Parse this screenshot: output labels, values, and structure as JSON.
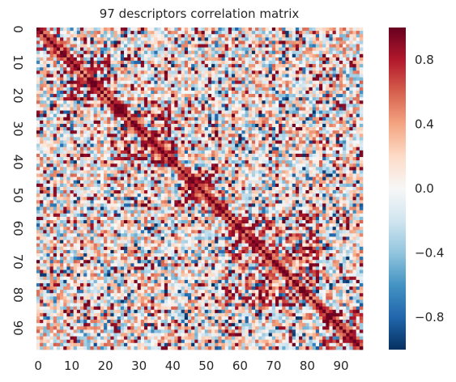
{
  "chart_data": {
    "type": "heatmap",
    "title": "97 descriptors correlation matrix",
    "xlabel": "",
    "ylabel": "",
    "n": 97,
    "x_ticks": [
      "0",
      "10",
      "20",
      "30",
      "40",
      "50",
      "60",
      "70",
      "80",
      "90"
    ],
    "y_ticks": [
      "0",
      "10",
      "20",
      "30",
      "40",
      "50",
      "60",
      "70",
      "80",
      "90"
    ],
    "colorbar": {
      "vmin": -1.0,
      "vmax": 1.0,
      "tick_labels": [
        "0.8",
        "0.4",
        "0.0",
        "−0.4",
        "−0.8"
      ],
      "tick_values": [
        0.8,
        0.4,
        0.0,
        -0.4,
        -0.8
      ],
      "colormap": "RdBu_r",
      "stops": [
        "#053061",
        "#2166ac",
        "#4393c3",
        "#92c5de",
        "#d1e5f0",
        "#f7f7f7",
        "#fddbc7",
        "#f4a582",
        "#d6604d",
        "#b2182b",
        "#67001f"
      ]
    },
    "grid": false,
    "legend": "colorbar-right",
    "values_note": "97x97 symmetric correlation matrix; diagonal = 1.0; approximate visual texture, individual cell values not legible"
  }
}
